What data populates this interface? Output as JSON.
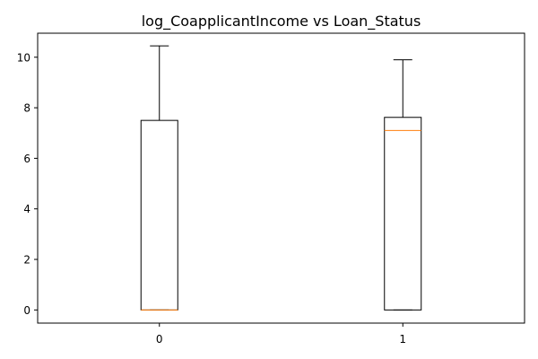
{
  "chart_data": {
    "type": "boxplot",
    "title": "log_CoapplicantIncome vs Loan_Status",
    "xlabel": "",
    "ylabel": "",
    "categories": [
      "0",
      "1"
    ],
    "ylim": [
      -0.52,
      10.95
    ],
    "yticks": [
      0,
      2,
      4,
      6,
      8,
      10
    ],
    "grid": false,
    "boxes": [
      {
        "category": "0",
        "whisker_low": 0,
        "q1": 0,
        "median": 0,
        "q3": 7.5,
        "whisker_high": 10.45
      },
      {
        "category": "1",
        "whisker_low": 0,
        "q1": 0,
        "median": 7.1,
        "q3": 7.62,
        "whisker_high": 9.9
      }
    ],
    "colors": {
      "box": "#000000",
      "median": "#ff7f0e",
      "axes": "#000000"
    }
  }
}
